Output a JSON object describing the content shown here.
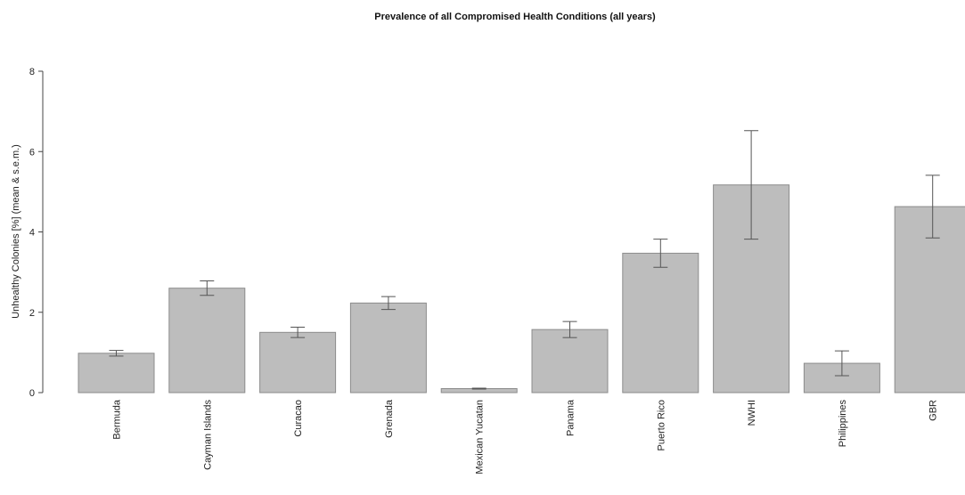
{
  "chart_data": {
    "type": "bar",
    "title": "Prevalence of all Compromised Health Conditions (all years)",
    "xlabel": "",
    "ylabel": "Unhealthy Colonies [%] (mean & s.e.m.)",
    "ylim": [
      0,
      8
    ],
    "yticks": [
      "0",
      "2",
      "4",
      "6",
      "8"
    ],
    "categories": [
      "Bermuda",
      "Cayman Islands",
      "Curacao",
      "Grenada",
      "Mexican Yucatan",
      "Panama",
      "Puerto Rico",
      "NWHI",
      "Philippines",
      "GBR"
    ],
    "values": [
      0.98,
      2.6,
      1.5,
      2.23,
      0.1,
      1.57,
      3.47,
      5.17,
      0.73,
      4.63
    ],
    "error": [
      0.07,
      0.18,
      0.13,
      0.16,
      0.01,
      0.2,
      0.35,
      1.35,
      0.31,
      0.78
    ],
    "grid": false,
    "colors": {
      "bar_fill": "#bdbdbd",
      "bar_stroke": "#8c8c8c",
      "error_bar": "#555555"
    }
  }
}
